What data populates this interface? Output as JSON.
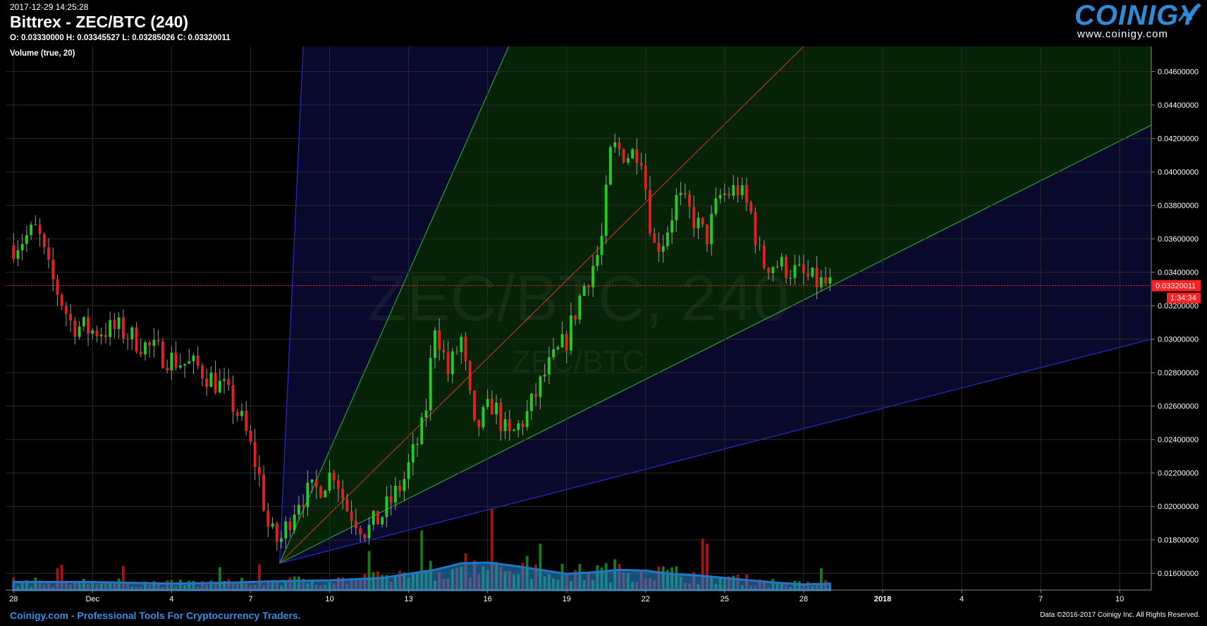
{
  "header": {
    "timestamp": "2017-12-29 14:25:28",
    "title": "Bittrex - ZEC/BTC (240)",
    "ohlc": "O: 0.03330000 H: 0.03345527 L: 0.03285026 C: 0.03320011",
    "volume_label": "Volume (true, 20)"
  },
  "logo": {
    "name": "COINIGY",
    "url": "www.coinigy.com"
  },
  "footer": {
    "left": "Coinigy.com - Professional Tools For Cryptocurrency Traders.",
    "right": "Data ©2016-2017 Coinigy Inc. All Rights Reserved."
  },
  "watermark": {
    "main": "ZEC/BTC, 240",
    "sub": "ZEC/BTC"
  },
  "colors": {
    "background": "#000000",
    "up": "#22cc22",
    "down": "#e61e1e",
    "volume_ma": "#1e78c8",
    "price_line": "#ff2222",
    "axis_text": "#ffffff",
    "logo": "#2e8bd8",
    "footer_link": "#3a8ee6"
  },
  "chart_data": {
    "type": "candlestick",
    "ylim": [
      0.015,
      0.0475
    ],
    "xlim": [
      -0.3,
      43.2
    ],
    "y_ticks": [
      "0.04600000",
      "0.04400000",
      "0.04200000",
      "0.04000000",
      "0.03800000",
      "0.03600000",
      "0.03400000",
      "0.03200000",
      "0.03000000",
      "0.02800000",
      "0.02600000",
      "0.02400000",
      "0.02200000",
      "0.02000000",
      "0.01800000",
      "0.01600000"
    ],
    "x_ticks": [
      {
        "label": "28",
        "pos": 0
      },
      {
        "label": "Dec",
        "pos": 3
      },
      {
        "label": "4",
        "pos": 6
      },
      {
        "label": "7",
        "pos": 9
      },
      {
        "label": "10",
        "pos": 12
      },
      {
        "label": "13",
        "pos": 15
      },
      {
        "label": "16",
        "pos": 18
      },
      {
        "label": "19",
        "pos": 21
      },
      {
        "label": "22",
        "pos": 24
      },
      {
        "label": "25",
        "pos": 27
      },
      {
        "label": "28",
        "pos": 30
      },
      {
        "label": "2018",
        "pos": 33
      },
      {
        "label": "4",
        "pos": 36
      },
      {
        "label": "7",
        "pos": 39
      },
      {
        "label": "10",
        "pos": 42
      }
    ],
    "grid": true,
    "current_price": "0.03320011",
    "countdown": "1:34:34",
    "price_keypoints": [
      [
        0,
        0.0356
      ],
      [
        0.9,
        0.0366
      ],
      [
        1.3,
        0.0342
      ],
      [
        2.2,
        0.0309
      ],
      [
        3,
        0.0305
      ],
      [
        4,
        0.0306
      ],
      [
        5,
        0.0296
      ],
      [
        6,
        0.0288
      ],
      [
        7,
        0.0283
      ],
      [
        8,
        0.027
      ],
      [
        8.7,
        0.025
      ],
      [
        9.3,
        0.022
      ],
      [
        9.7,
        0.0185
      ],
      [
        10.1,
        0.0178
      ],
      [
        10.8,
        0.0205
      ],
      [
        11.5,
        0.021
      ],
      [
        12.2,
        0.0222
      ],
      [
        12.6,
        0.02
      ],
      [
        13.4,
        0.0185
      ],
      [
        14,
        0.0195
      ],
      [
        14.8,
        0.0215
      ],
      [
        15.6,
        0.025
      ],
      [
        16,
        0.031
      ],
      [
        16.5,
        0.028
      ],
      [
        17,
        0.03
      ],
      [
        17.5,
        0.0245
      ],
      [
        18.2,
        0.0262
      ],
      [
        18.8,
        0.024
      ],
      [
        19.5,
        0.0255
      ],
      [
        20.2,
        0.028
      ],
      [
        21,
        0.03
      ],
      [
        21.6,
        0.033
      ],
      [
        22.3,
        0.0355
      ],
      [
        22.7,
        0.0415
      ],
      [
        23.4,
        0.041
      ],
      [
        23.8,
        0.0415
      ],
      [
        24.3,
        0.0355
      ],
      [
        24.7,
        0.036
      ],
      [
        25.2,
        0.0385
      ],
      [
        25.7,
        0.0375
      ],
      [
        26.3,
        0.036
      ],
      [
        26.8,
        0.0385
      ],
      [
        27.5,
        0.039
      ],
      [
        28,
        0.0375
      ],
      [
        28.4,
        0.0345
      ],
      [
        29,
        0.0345
      ],
      [
        29.7,
        0.034
      ],
      [
        30.3,
        0.0335
      ],
      [
        31,
        0.0332
      ]
    ],
    "volume_ma_points": [
      [
        0,
        0.1
      ],
      [
        3,
        0.1
      ],
      [
        6,
        0.08
      ],
      [
        8,
        0.09
      ],
      [
        10,
        0.11
      ],
      [
        12,
        0.12
      ],
      [
        14,
        0.15
      ],
      [
        16,
        0.25
      ],
      [
        17,
        0.33
      ],
      [
        18,
        0.34
      ],
      [
        19,
        0.3
      ],
      [
        20,
        0.25
      ],
      [
        21,
        0.2
      ],
      [
        22,
        0.22
      ],
      [
        23,
        0.25
      ],
      [
        24,
        0.24
      ],
      [
        25,
        0.2
      ],
      [
        26,
        0.18
      ],
      [
        27,
        0.15
      ],
      [
        28,
        0.12
      ],
      [
        29,
        0.09
      ],
      [
        30,
        0.07
      ],
      [
        31,
        0.08
      ]
    ],
    "fan_origin": [
      10.1,
      0.0166
    ],
    "fan_lines": [
      {
        "to": [
          11.0,
          0.0475
        ],
        "color": "#2b2bcf"
      },
      {
        "to": [
          18.8,
          0.0475
        ],
        "color": "#2aa02a"
      },
      {
        "to": [
          30.0,
          0.0475
        ],
        "color": "#b03a1a"
      },
      {
        "to": [
          43.2,
          0.0428
        ],
        "color": "#2aa02a"
      },
      {
        "to": [
          43.2,
          0.03
        ],
        "color": "#2b2bcf"
      }
    ]
  }
}
